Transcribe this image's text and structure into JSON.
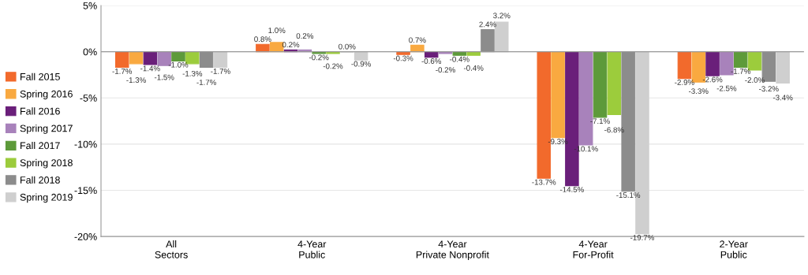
{
  "chart_data": {
    "type": "bar",
    "categories": [
      "All\nSectors",
      "4-Year\nPublic",
      "4-Year\nPrivate Nonprofit",
      "4-Year\nFor-Profit",
      "2-Year\nPublic"
    ],
    "series": [
      {
        "name": "Fall 2015",
        "color": "#f26a2c",
        "values": [
          -1.7,
          0.8,
          -0.3,
          -13.7,
          -2.9
        ],
        "value_labels": [
          "-1.7%",
          "0.8%",
          "-0.3%",
          "-13.7%",
          "-2.9%"
        ]
      },
      {
        "name": "Spring 2016",
        "color": "#f9a940",
        "values": [
          -1.3,
          1.0,
          0.7,
          -9.3,
          -3.3
        ],
        "value_labels": [
          "-1.3%",
          "1.0%",
          "0.7%",
          "-9.3%",
          "-3.3%"
        ]
      },
      {
        "name": "Fall 2016",
        "color": "#6a1f7a",
        "values": [
          -1.4,
          0.2,
          -0.6,
          -14.5,
          -2.6
        ],
        "value_labels": [
          "-1.4%",
          "0.2%",
          "-0.6%",
          "-14.5%",
          "-2.6%"
        ]
      },
      {
        "name": "Spring 2017",
        "color": "#a882bb",
        "values": [
          -1.5,
          0.2,
          -0.2,
          -10.1,
          -2.5
        ],
        "value_labels": [
          "-1.5%",
          "0.2%",
          "-0.2%",
          "-10.1%",
          "-2.5%"
        ]
      },
      {
        "name": "Fall 2017",
        "color": "#5d9a3a",
        "values": [
          -1.0,
          -0.2,
          -0.4,
          -7.1,
          -1.7
        ],
        "value_labels": [
          "-1.0%",
          "-0.2%",
          "-0.4%",
          "-7.1%",
          "-1.7%"
        ]
      },
      {
        "name": "Spring 2018",
        "color": "#9ccc3c",
        "values": [
          -1.3,
          -0.2,
          -0.4,
          -6.8,
          -2.0
        ],
        "value_labels": [
          "-1.3%",
          "-0.2%",
          "-0.4%",
          "-6.8%",
          "-2.0%"
        ]
      },
      {
        "name": "Fall 2018",
        "color": "#8c8c8c",
        "values": [
          -1.7,
          0.0,
          2.4,
          -15.1,
          -3.2
        ],
        "value_labels": [
          "-1.7%",
          "0.0%",
          "2.4%",
          "-15.1%",
          "-3.2%"
        ]
      },
      {
        "name": "Spring 2019",
        "color": "#cfcfcf",
        "values": [
          -1.7,
          -0.9,
          3.2,
          -19.7,
          -3.4
        ],
        "value_labels": [
          "-1.7%",
          "-0.9%",
          "3.2%",
          "-19.7%",
          "-3.4%"
        ]
      }
    ],
    "ylim": [
      -20,
      5
    ],
    "yticks": [
      {
        "value": 5,
        "label": "5%"
      },
      {
        "value": 0,
        "label": "0%"
      },
      {
        "value": -5,
        "label": "-5%"
      },
      {
        "value": -10,
        "label": "-10%"
      },
      {
        "value": -15,
        "label": "-15%"
      },
      {
        "value": -20,
        "label": "-20%"
      }
    ],
    "grid": "y",
    "legend": "left"
  }
}
